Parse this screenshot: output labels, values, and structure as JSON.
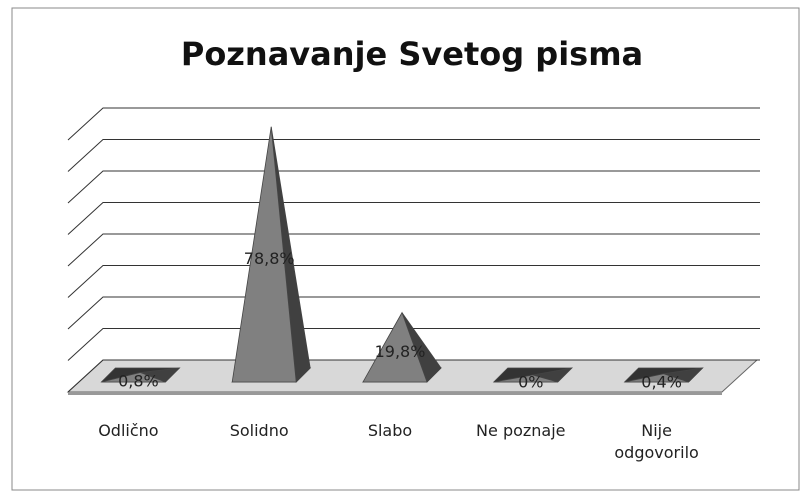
{
  "chart_data": {
    "type": "pyramid3d",
    "title": "Poznavanje Svetog pisma",
    "categories": [
      "Odlično",
      "Solidno",
      "Slabo",
      "Ne poznaje",
      "Nije odgovorilo"
    ],
    "values": [
      0.8,
      78.8,
      19.8,
      0,
      0.4
    ],
    "value_labels": [
      "0,8%",
      "78,8%",
      "19,8%",
      "0%",
      "0,4%"
    ],
    "ylim": [
      0,
      80
    ],
    "yticks": [
      0,
      10,
      20,
      30,
      40,
      50,
      60,
      70,
      80
    ],
    "grid": true,
    "color": "#808080"
  }
}
